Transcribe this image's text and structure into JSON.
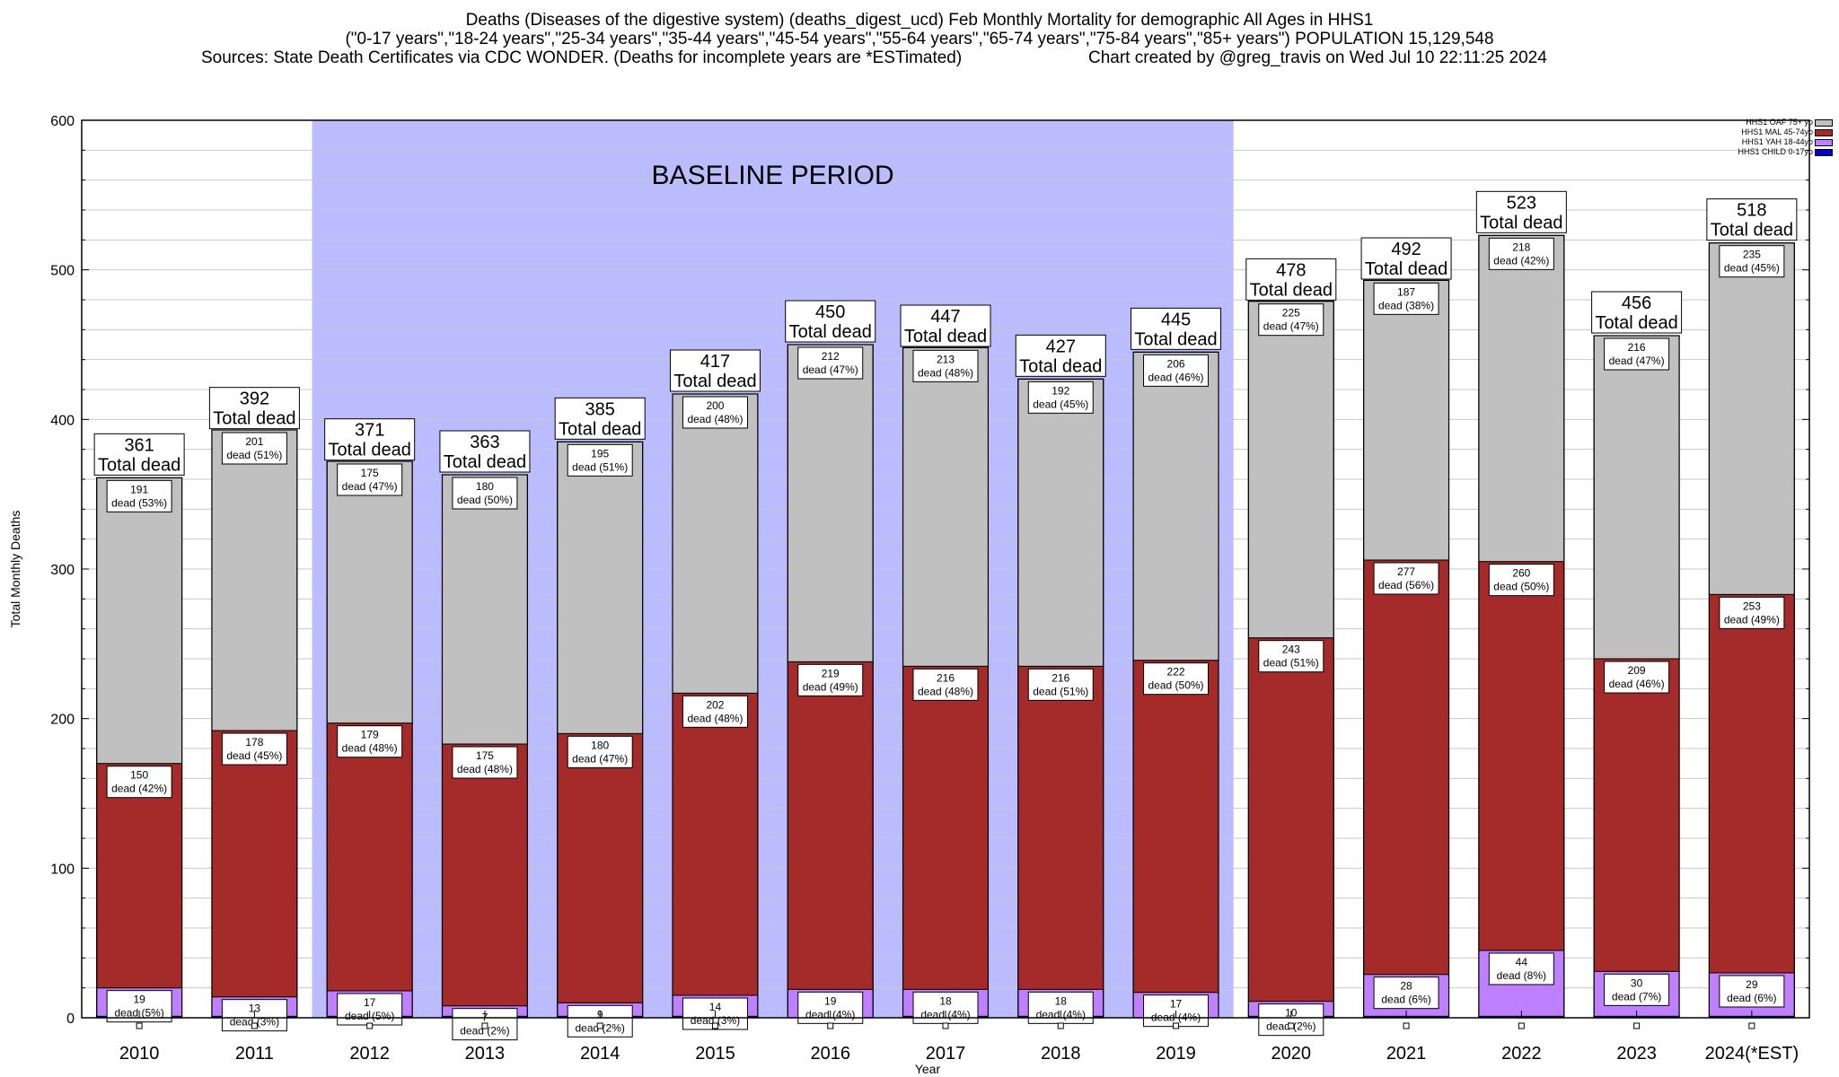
{
  "header": {
    "line1": "Deaths (Diseases of the digestive system) (deaths_digest_ucd) Feb Monthly Mortality for demographic All Ages in HHS1",
    "line2": "(\"0-17 years\",\"18-24 years\",\"25-34 years\",\"35-44 years\",\"45-54 years\",\"55-64 years\",\"65-74 years\",\"75-84 years\",\"85+ years\") POPULATION 15,129,548",
    "line3_left": "Sources: State Death Certificates via CDC WONDER. (Deaths for incomplete years are *ESTimated)",
    "line3_right": "Chart created by @greg_travis on Wed Jul 10 22:11:25 2024"
  },
  "legend": [
    {
      "label": "HHS1 OAF 75+ yo",
      "color": "#c0c0c0"
    },
    {
      "label": "HHS1 MAL 45-74yo",
      "color": "#a52a2a"
    },
    {
      "label": "HHS1 YAH 18-44yo",
      "color": "#bf80ff"
    },
    {
      "label": "HHS1 CHILD 0-17yo",
      "color": "#0000cc"
    }
  ],
  "baseline_label": "BASELINE PERIOD",
  "total_label": "Total dead",
  "dead_word": "dead",
  "chart_data": {
    "type": "bar",
    "stacked": true,
    "xlabel": "Year",
    "ylabel": "Total Monthly Deaths",
    "ylim": [
      0,
      600
    ],
    "yticks": [
      0,
      100,
      200,
      300,
      400,
      500,
      600
    ],
    "categories": [
      "2010",
      "2011",
      "2012",
      "2013",
      "2014",
      "2015",
      "2016",
      "2017",
      "2018",
      "2019",
      "2020",
      "2021",
      "2022",
      "2023",
      "2024(*EST)"
    ],
    "baseline_period": [
      "2012",
      "2019"
    ],
    "totals": [
      361,
      392,
      371,
      363,
      385,
      417,
      450,
      447,
      427,
      445,
      478,
      492,
      523,
      456,
      518
    ],
    "series": [
      {
        "name": "HHS1 CHILD 0-17yo",
        "color": "#0000cc",
        "values": [
          1,
          1,
          1,
          1,
          1,
          1,
          0,
          1,
          1,
          0,
          1,
          1,
          1,
          1,
          1
        ]
      },
      {
        "name": "HHS1 YAH 18-44yo",
        "color": "#bf80ff",
        "values": [
          19,
          13,
          17,
          7,
          9,
          14,
          19,
          18,
          18,
          17,
          10,
          28,
          44,
          30,
          29
        ],
        "pct": [
          5,
          3,
          5,
          2,
          2,
          3,
          4,
          4,
          4,
          4,
          2,
          6,
          8,
          7,
          6
        ]
      },
      {
        "name": "HHS1 MAL 45-74yo",
        "color": "#a52a2a",
        "values": [
          150,
          178,
          179,
          175,
          180,
          202,
          219,
          216,
          216,
          222,
          243,
          277,
          260,
          209,
          253
        ],
        "pct": [
          42,
          45,
          48,
          48,
          47,
          48,
          49,
          48,
          51,
          50,
          51,
          56,
          50,
          46,
          49
        ]
      },
      {
        "name": "HHS1 OAF 75+ yo",
        "color": "#c0c0c0",
        "values": [
          191,
          201,
          175,
          180,
          195,
          200,
          212,
          213,
          192,
          206,
          225,
          187,
          218,
          216,
          235
        ],
        "pct": [
          53,
          51,
          47,
          50,
          51,
          48,
          47,
          48,
          45,
          46,
          47,
          38,
          42,
          47,
          45
        ]
      }
    ]
  }
}
